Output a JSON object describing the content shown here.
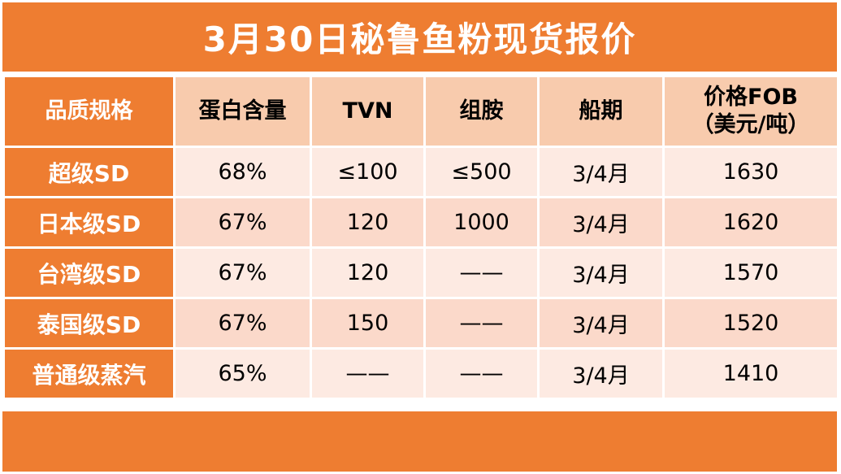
{
  "title": "3月30日秘鲁鱼粉现货报价",
  "colors": {
    "accent_orange": "#ee7d31",
    "header_pink": "#f8cbad",
    "row_light": "#fdeae2",
    "row_dark": "#fbd9ca"
  },
  "table": {
    "headers": {
      "grade": "品质规格",
      "protein": "蛋白含量",
      "tvn": "TVN",
      "histamine": "组胺",
      "shipment": "船期",
      "price_line1": "价格FOB",
      "price_line2": "（美元/吨）"
    },
    "rows": [
      {
        "grade": "超级SD",
        "protein": "68%",
        "tvn": "≤100",
        "histamine": "≤500",
        "shipment": "3/4月",
        "price": "1630"
      },
      {
        "grade": "日本级SD",
        "protein": "67%",
        "tvn": "120",
        "histamine": "1000",
        "shipment": "3/4月",
        "price": "1620"
      },
      {
        "grade": "台湾级SD",
        "protein": "67%",
        "tvn": "120",
        "histamine": "——",
        "shipment": "3/4月",
        "price": "1570"
      },
      {
        "grade": "泰国级SD",
        "protein": "67%",
        "tvn": "150",
        "histamine": "——",
        "shipment": "3/4月",
        "price": "1520"
      },
      {
        "grade": "普通级蒸汽",
        "protein": "65%",
        "tvn": "——",
        "histamine": "——",
        "shipment": "3/4月",
        "price": "1410"
      }
    ]
  }
}
